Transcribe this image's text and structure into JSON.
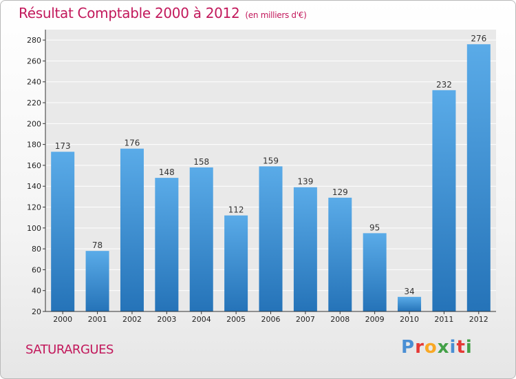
{
  "header": {
    "title": "Résultat Comptable 2000 à 2012",
    "subtitle": "(en milliers d'€)"
  },
  "footer": {
    "town": "SATURARGUES",
    "logo": [
      "P",
      "r",
      "o",
      "x",
      "i",
      "t",
      "i"
    ],
    "logo_colors": [
      "#4a8fd4",
      "#e53935",
      "#f9a825",
      "#43a047",
      "#4a8fd4",
      "#e53935",
      "#43a047"
    ]
  },
  "chart_data": {
    "type": "bar",
    "title": "Résultat Comptable 2000 à 2012",
    "subtitle": "(en milliers d'€)",
    "categories": [
      "2000",
      "2001",
      "2002",
      "2003",
      "2004",
      "2005",
      "2006",
      "2007",
      "2008",
      "2009",
      "2010",
      "2011",
      "2012"
    ],
    "values": [
      173,
      78,
      176,
      148,
      158,
      112,
      159,
      139,
      129,
      95,
      34,
      232,
      276
    ],
    "yticks": [
      20,
      40,
      60,
      80,
      100,
      120,
      140,
      160,
      180,
      200,
      220,
      240,
      260,
      280
    ],
    "ylim": [
      20,
      290
    ],
    "grid": true,
    "bar_color_top": "#5aabe8",
    "bar_color_bottom": "#2573b8"
  }
}
